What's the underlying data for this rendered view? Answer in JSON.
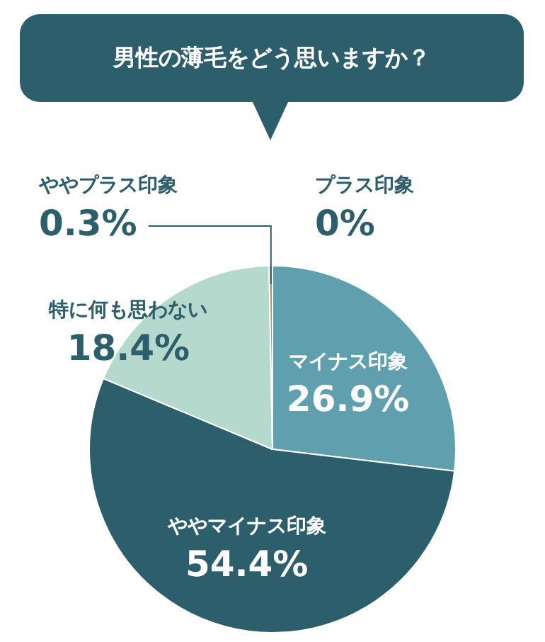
{
  "chart_data": {
    "type": "pie",
    "title": "男性の薄毛をどう思いますか？",
    "categories": [
      "プラス印象",
      "マイナス印象",
      "ややマイナス印象",
      "特に何も思わない",
      "ややプラス印象"
    ],
    "values": [
      0,
      26.9,
      54.4,
      18.4,
      0.3
    ],
    "value_labels": [
      "0%",
      "26.9%",
      "54.4%",
      "18.4%",
      "0.3%"
    ],
    "colors": [
      "#e0c79a",
      "#5f9fae",
      "#2c5f6b",
      "#b5d9cc",
      "#b0925e"
    ],
    "legend": false
  }
}
